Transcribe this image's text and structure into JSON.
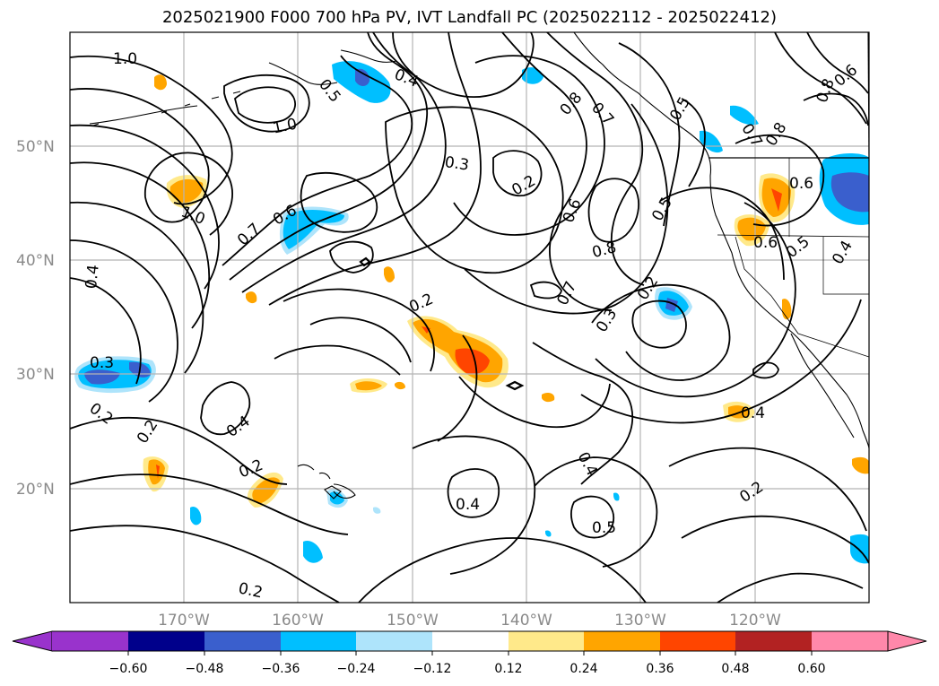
{
  "title": "2025021900 F000 700 hPa PV, IVT Landfall PC (2025022112 - 2025022412)",
  "lat_labels": [
    "50°N",
    "40°N",
    "30°N",
    "20°N"
  ],
  "lon_labels": [
    "170°W",
    "160°W",
    "150°W",
    "140°W",
    "130°W",
    "120°W"
  ],
  "colorbar": {
    "ticks": [
      "−0.60",
      "−0.48",
      "−0.36",
      "−0.24",
      "−0.12",
      "0.12",
      "0.24",
      "0.36",
      "0.48",
      "0.60"
    ],
    "colors": [
      "#9933cc",
      "#00008b",
      "#3a5fcd",
      "#00bfff",
      "#aee4fb",
      "#ffffff",
      "#ffe98a",
      "#ffa500",
      "#ff4500",
      "#b22222",
      "#ff88aa"
    ]
  },
  "contour_labels": [
    "1.0",
    "0.5",
    "0.4",
    "0.8",
    "0.7",
    "0.5",
    "0.6",
    "0.8",
    "1.0",
    "0.3",
    "0.2",
    "0.6",
    "0.5",
    "1.0",
    "0.7",
    "0.6",
    "0.8",
    "0.6",
    "0.5",
    "0.4",
    "0.4",
    "0.2",
    "0.7",
    "0.2",
    "0.3",
    "0.3",
    "0.2",
    "0.2",
    "0.4",
    "0.4",
    "0.2",
    "0.4",
    "0.4",
    "0.5",
    "0.2",
    "0.2",
    "0.6",
    "0.8",
    "0.7"
  ]
}
